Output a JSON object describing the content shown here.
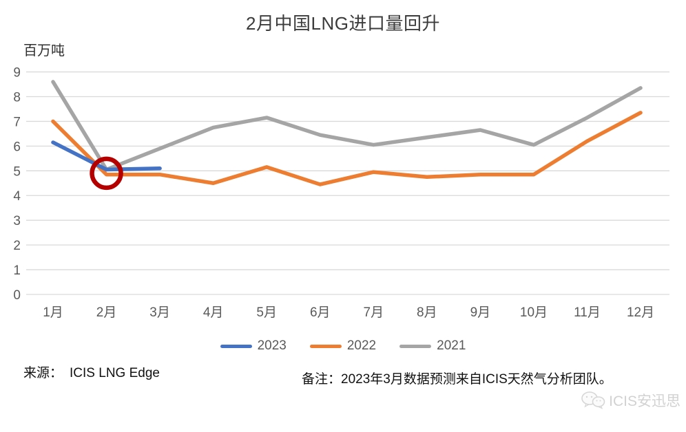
{
  "title": "2月中国LNG进口量回升",
  "y_unit_label": "百万吨",
  "source": {
    "prefix": "来源：",
    "value": "ICIS LNG Edge"
  },
  "note": "备注：2023年3月数据预测来自ICIS天然气分析团队。",
  "watermark_text": "ICIS安迅思",
  "colors": {
    "blue_2023": "#4472C4",
    "orange_2022": "#ED7D31",
    "gray_2021": "#A5A5A5",
    "annotation_red": "#B50000",
    "grid": "#D9D9D9",
    "axis_text": "#595959"
  },
  "legend": [
    {
      "label": "2023",
      "color": "#4472C4"
    },
    {
      "label": "2022",
      "color": "#ED7D31"
    },
    {
      "label": "2021",
      "color": "#A5A5A5"
    }
  ],
  "chart_data": {
    "type": "line",
    "title": "2月中国LNG进口量回升",
    "ylabel": "百万吨",
    "categories": [
      "1月",
      "2月",
      "3月",
      "4月",
      "5月",
      "6月",
      "7月",
      "8月",
      "9月",
      "10月",
      "11月",
      "12月"
    ],
    "series": [
      {
        "name": "2023",
        "color": "#4472C4",
        "values": [
          6.15,
          5.05,
          5.1
        ]
      },
      {
        "name": "2022",
        "color": "#ED7D31",
        "values": [
          7.0,
          4.85,
          4.85,
          4.5,
          5.15,
          4.45,
          4.95,
          4.75,
          4.85,
          4.85,
          6.2,
          7.35
        ]
      },
      {
        "name": "2021",
        "color": "#A5A5A5",
        "values": [
          8.6,
          5.05,
          5.9,
          6.75,
          7.15,
          6.45,
          6.05,
          6.35,
          6.65,
          6.05,
          7.15,
          8.35
        ]
      }
    ],
    "ylim": [
      0,
      9
    ],
    "yticks": [
      0,
      1,
      2,
      3,
      4,
      5,
      6,
      7,
      8,
      9
    ],
    "grid": true,
    "legend_position": "bottom",
    "annotation": {
      "type": "circle",
      "month_index": 1,
      "value": 4.9,
      "radius": 21,
      "stroke_width": 6.5,
      "color": "#B50000"
    }
  }
}
